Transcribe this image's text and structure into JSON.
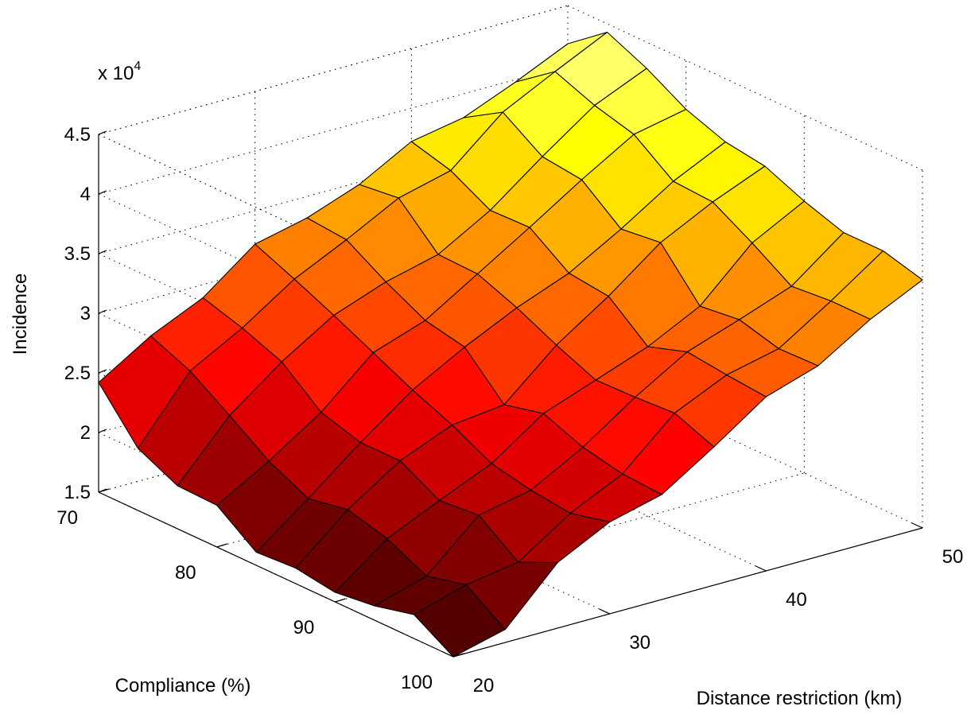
{
  "chart_data": {
    "type": "surface",
    "xlabel": "Distance restriction (km)",
    "ylabel": "Compliance (%)",
    "zlabel": "Incidence",
    "z_multiplier_label": "x 10",
    "z_multiplier_exponent": "4",
    "x_ticks": [
      "20",
      "30",
      "40",
      "50"
    ],
    "y_ticks": [
      "70",
      "80",
      "90",
      "100"
    ],
    "z_ticks": [
      "1.5",
      "2",
      "2.5",
      "3",
      "3.5",
      "4",
      "4.5"
    ],
    "xlim": [
      20,
      50
    ],
    "ylim": [
      70,
      100
    ],
    "zlim": [
      15000,
      45000
    ],
    "colormap": "hot",
    "grid": true,
    "x_values": [
      20,
      23.33,
      26.67,
      30,
      33.33,
      36.67,
      40,
      43.33,
      46.67,
      50
    ],
    "y_values": [
      70,
      73.33,
      76.67,
      80,
      83.33,
      86.67,
      90,
      93.33,
      96.67,
      100
    ],
    "z_values": [
      [
        24200,
        26900,
        28900,
        32200,
        33200,
        34800,
        37200,
        38000,
        39800,
        41800
      ],
      [
        20200,
        25500,
        27900,
        30800,
        32900,
        35200,
        36300,
        40000,
        42200,
        44300
      ],
      [
        18600,
        23300,
        26600,
        29300,
        30900,
        32000,
        34500,
        37800,
        40900,
        42800
      ],
      [
        18500,
        21000,
        23900,
        27700,
        29200,
        31900,
        34600,
        37400,
        40000,
        40900
      ],
      [
        16100,
        19400,
        22900,
        26100,
        28500,
        30600,
        32300,
        34800,
        37600,
        39700
      ],
      [
        16300,
        20000,
        22900,
        24700,
        25200,
        29000,
        31900,
        35200,
        37400,
        39200
      ],
      [
        15800,
        19100,
        21100,
        23000,
        26000,
        27600,
        29200,
        31400,
        35500,
        37800
      ],
      [
        16200,
        17500,
        21400,
        22300,
        24700,
        27700,
        30300,
        31800,
        33400,
        36700
      ],
      [
        17000,
        18300,
        19000,
        21900,
        24000,
        27900,
        29900,
        30900,
        33700,
        36700
      ],
      [
        15000,
        16100,
        20500,
        22700,
        23800,
        26600,
        29600,
        31000,
        33700,
        35800
      ]
    ]
  }
}
